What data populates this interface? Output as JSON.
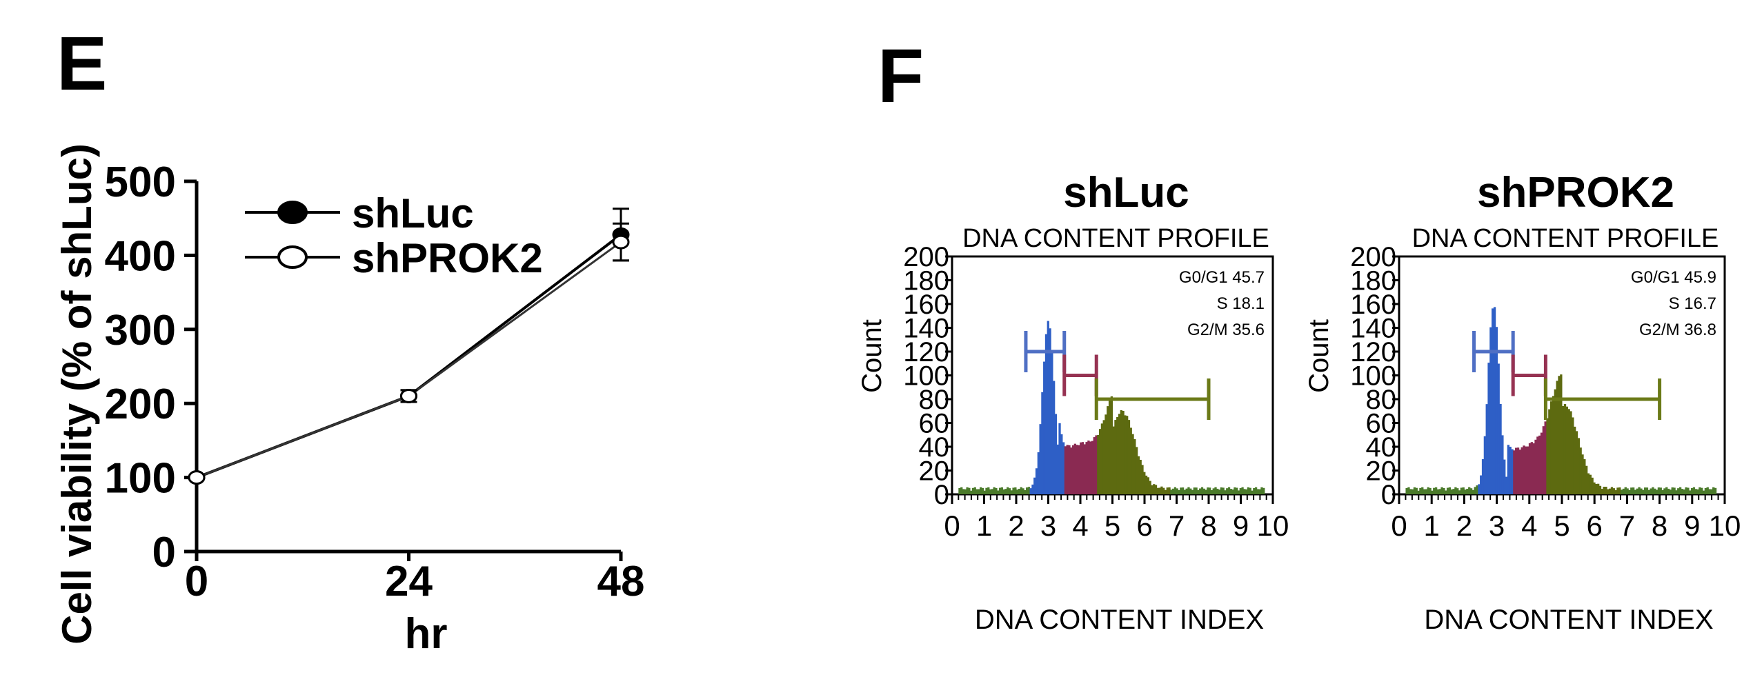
{
  "panels": {
    "E": {
      "label": "E",
      "chart_data": {
        "type": "line",
        "ylabel": "Cell viability (% of shLuc)",
        "xlabel": "hr",
        "x": [
          0,
          24,
          48
        ],
        "x_tick_labels": [
          "0",
          "24",
          "48"
        ],
        "y_ticks": [
          0,
          100,
          200,
          300,
          400,
          500
        ],
        "ylim": [
          0,
          500
        ],
        "series": [
          {
            "name": "shLuc",
            "values": [
              100,
              210,
              428
            ],
            "errors": [
              0,
              8,
              35
            ],
            "marker": "filled-circle"
          },
          {
            "name": "shPROK2",
            "values": [
              100,
              210,
              418
            ],
            "errors": [
              0,
              8,
              25
            ],
            "marker": "open-circle"
          }
        ],
        "legend_position": "top-left"
      }
    },
    "F": {
      "label": "F",
      "charts": [
        {
          "group_title": "shLuc",
          "chart_data": {
            "type": "area",
            "title": "DNA CONTENT PROFILE",
            "xlabel": "DNA CONTENT INDEX",
            "ylabel": "Count",
            "x_ticks": [
              "0",
              "1",
              "2",
              "3",
              "4",
              "5",
              "6",
              "7",
              "8",
              "9",
              "10"
            ],
            "y_ticks": [
              "0",
              "20",
              "40",
              "60",
              "80",
              "100",
              "120",
              "140",
              "160",
              "180",
              "200"
            ],
            "xlim": [
              0,
              10
            ],
            "ylim": [
              0,
              200
            ],
            "peaks": [
              {
                "phase": "G0/G1",
                "center": 3.0,
                "height": 140,
                "width": 0.18
              },
              {
                "phase": "G2/M",
                "center": 5.3,
                "height": 65,
                "width": 0.4
              }
            ],
            "s_phase_level": 38,
            "phase_gates": [
              {
                "phase": "G0/G1",
                "range": [
                  2.3,
                  3.5
                ],
                "y": 120,
                "color": "#4f6fc4"
              },
              {
                "phase": "S",
                "range": [
                  3.5,
                  4.5
                ],
                "y": 100,
                "color": "#963252"
              },
              {
                "phase": "G2/M",
                "range": [
                  4.5,
                  8.0
                ],
                "y": 80,
                "color": "#6b7a18"
              }
            ],
            "phase_fill_colors": {
              "G0/G1": "#2e5fc6",
              "S": "#8a2a52",
              "G2/M": "#5d6a10"
            },
            "stats": [
              "G0/G1 45.7",
              "S 18.1",
              "G2/M 35.6"
            ]
          }
        },
        {
          "group_title": "shPROK2",
          "chart_data": {
            "type": "area",
            "title": "DNA CONTENT PROFILE",
            "xlabel": "DNA CONTENT INDEX",
            "ylabel": "Count",
            "x_ticks": [
              "0",
              "1",
              "2",
              "3",
              "4",
              "5",
              "6",
              "7",
              "8",
              "9",
              "10"
            ],
            "y_ticks": [
              "0",
              "20",
              "40",
              "60",
              "80",
              "100",
              "120",
              "140",
              "160",
              "180",
              "200"
            ],
            "xlim": [
              0,
              10
            ],
            "ylim": [
              0,
              200
            ],
            "peaks": [
              {
                "phase": "G0/G1",
                "center": 2.9,
                "height": 155,
                "width": 0.17
              },
              {
                "phase": "G2/M",
                "center": 5.1,
                "height": 70,
                "width": 0.4
              }
            ],
            "s_phase_level": 36,
            "phase_gates": [
              {
                "phase": "G0/G1",
                "range": [
                  2.3,
                  3.5
                ],
                "y": 120,
                "color": "#4f6fc4"
              },
              {
                "phase": "S",
                "range": [
                  3.5,
                  4.5
                ],
                "y": 100,
                "color": "#963252"
              },
              {
                "phase": "G2/M",
                "range": [
                  4.5,
                  8.0
                ],
                "y": 80,
                "color": "#6b7a18"
              }
            ],
            "phase_fill_colors": {
              "G0/G1": "#2e5fc6",
              "S": "#8a2a52",
              "G2/M": "#5d6a10"
            },
            "stats": [
              "G0/G1 45.9",
              "S 16.7",
              "G2/M 36.8"
            ]
          }
        }
      ]
    }
  }
}
